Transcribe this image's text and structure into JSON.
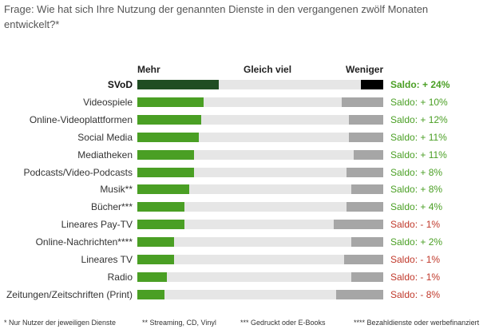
{
  "question": "Frage: Wie hat sich Ihre Nutzung der genannten Dienste in den vergangenen zwölf Monaten entwickelt?*",
  "colors": {
    "more": "#4a9f24",
    "less": "#a6a6a6",
    "track": "#e6e6e6",
    "highlight_more": "#1f4d22",
    "highlight_less": "#000000",
    "positive": "#4a9f24",
    "negative": "#c0392b"
  },
  "chart_data": {
    "type": "bar",
    "subtype": "diverging-stacked-horizontal",
    "headers": [
      "Mehr",
      "Gleich viel",
      "Weniger"
    ],
    "series": [
      {
        "name": "Mehr",
        "color": "#4a9f24"
      },
      {
        "name": "Gleich viel",
        "color": "#e6e6e6"
      },
      {
        "name": "Weniger",
        "color": "#a6a6a6"
      }
    ],
    "scale": "percent of respondents, 0-100 per row",
    "rows": [
      {
        "category": "SVoD",
        "mehr": 33,
        "weniger": 9,
        "saldo": "Saldo: + 24%",
        "saldo_sign": "positive",
        "highlight": true
      },
      {
        "category": "Videospiele",
        "mehr": 27,
        "weniger": 17,
        "saldo": "Saldo: + 10%",
        "saldo_sign": "positive"
      },
      {
        "category": "Online-Videoplattformen",
        "mehr": 26,
        "weniger": 14,
        "saldo": "Saldo: + 12%",
        "saldo_sign": "positive"
      },
      {
        "category": "Social Media",
        "mehr": 25,
        "weniger": 14,
        "saldo": "Saldo: + 11%",
        "saldo_sign": "positive"
      },
      {
        "category": "Mediatheken",
        "mehr": 23,
        "weniger": 12,
        "saldo": "Saldo: + 11%",
        "saldo_sign": "positive"
      },
      {
        "category": "Podcasts/Video-Podcasts",
        "mehr": 23,
        "weniger": 15,
        "saldo": "Saldo: + 8%",
        "saldo_sign": "positive"
      },
      {
        "category": "Musik**",
        "mehr": 21,
        "weniger": 13,
        "saldo": "Saldo: + 8%",
        "saldo_sign": "positive"
      },
      {
        "category": "Bücher***",
        "mehr": 19,
        "weniger": 15,
        "saldo": "Saldo: + 4%",
        "saldo_sign": "positive"
      },
      {
        "category": "Lineares Pay-TV",
        "mehr": 19,
        "weniger": 20,
        "saldo": "Saldo: - 1%",
        "saldo_sign": "negative"
      },
      {
        "category": "Online-Nachrichten****",
        "mehr": 15,
        "weniger": 13,
        "saldo": "Saldo: + 2%",
        "saldo_sign": "positive"
      },
      {
        "category": "Lineares TV",
        "mehr": 15,
        "weniger": 16,
        "saldo": "Saldo: - 1%",
        "saldo_sign": "negative"
      },
      {
        "category": "Radio",
        "mehr": 12,
        "weniger": 13,
        "saldo": "Saldo: - 1%",
        "saldo_sign": "negative"
      },
      {
        "category": "Zeitungen/Zeitschriften (Print)",
        "mehr": 11,
        "weniger": 19,
        "saldo": "Saldo: - 8%",
        "saldo_sign": "negative"
      }
    ]
  },
  "footnotes": [
    "* Nur Nutzer der jeweiligen Dienste",
    "** Streaming, CD, Vinyl",
    "*** Gedruckt oder E-Books",
    "**** Bezahldienste oder werbefinanziert"
  ]
}
